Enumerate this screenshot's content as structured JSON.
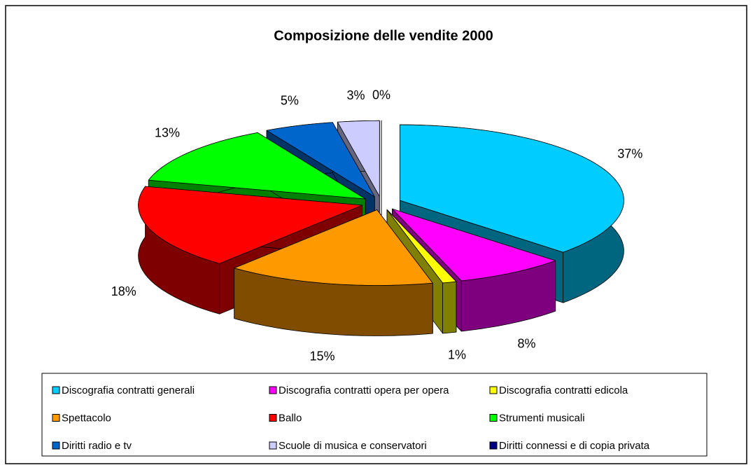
{
  "chart_data": {
    "type": "pie",
    "title": "Composizione delle vendite 2000",
    "categories": [
      "Discografia contratti generali",
      "Discografia contratti opera per opera",
      "Discografia contratti edicola",
      "Spettacolo",
      "Ballo",
      "Strumenti musicali",
      "Diritti radio e tv",
      "Scuole di musica e conservatori",
      "Diritti connessi e di copia privata"
    ],
    "values": [
      37,
      8,
      1,
      15,
      18,
      13,
      5,
      3,
      0
    ],
    "value_labels": [
      "37%",
      "8%",
      "1%",
      "15%",
      "18%",
      "13%",
      "5%",
      "3%",
      "0%"
    ],
    "colors": [
      "#00ccff",
      "#ff00ff",
      "#ffff00",
      "#ff9900",
      "#ff0000",
      "#00ff00",
      "#0066cc",
      "#ccccff",
      "#000080"
    ],
    "legend": "bottom"
  }
}
